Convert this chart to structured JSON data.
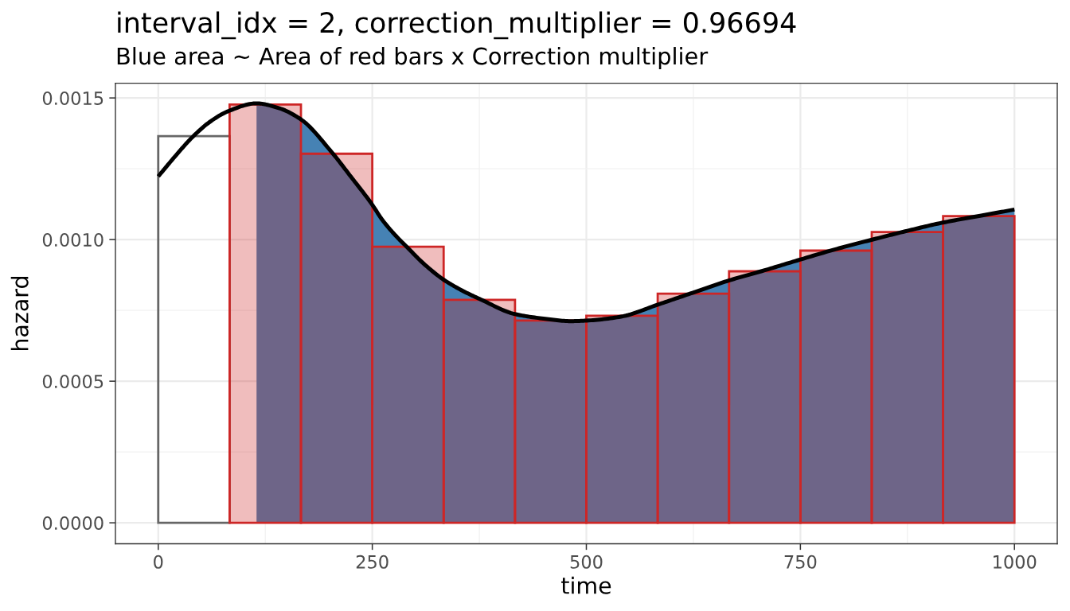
{
  "chart_data": {
    "type": "histogram",
    "title": "interval_idx = 2, correction_multiplier = 0.96694",
    "subtitle": "Blue area ~ Area of red bars x Correction multiplier",
    "xlabel": "time",
    "ylabel": "hazard",
    "series": [
      {
        "bins": [
          0,
          83.33
        ],
        "values": [
          0.001365
        ],
        "color": "#666666"
      },
      {
        "type": "area",
        "x": [
          114.8,
          140,
          166.8,
          203,
          225,
          249.5,
          261.8,
          280.4,
          289.7,
          310,
          333,
          355,
          376.3,
          416.6,
          450,
          481.6,
          500.2,
          540.6,
          585,
          624,
          667,
          707.5,
          749.3,
          790,
          832.9,
          875,
          916.4,
          960,
          1000
        ],
        "values": [
          0.001481,
          0.001465,
          0.001424,
          0.001307,
          0.001222,
          0.001125,
          0.001069,
          0.001004,
          0.000976,
          0.000915,
          0.000859,
          0.00082,
          0.000789,
          0.000737,
          0.000721,
          0.000712,
          0.000714,
          0.000728,
          0.000772,
          0.000812,
          0.000856,
          0.000891,
          0.000929,
          0.000965,
          0.000999,
          0.001031,
          0.00106,
          0.001084,
          0.001106
        ],
        "color": "#4682b4"
      },
      {
        "bins": [
          83.33,
          166.67,
          250,
          333.33,
          416.67,
          500,
          583.33,
          666.67,
          750,
          833.33,
          916.67,
          1000
        ],
        "values": [
          0.001477,
          0.001303,
          0.000975,
          0.000787,
          0.000714,
          0.000731,
          0.000809,
          0.000888,
          0.000961,
          0.001027,
          0.001083
        ],
        "color": "#cd2626"
      },
      {
        "type": "line",
        "x": [
          0,
          20,
          39,
          60,
          82.3,
          114.8,
          140,
          166.8,
          203,
          225,
          249.5,
          261.8,
          280.4,
          289.7,
          310,
          333,
          355,
          376.3,
          416.6,
          450,
          481.6,
          500.2,
          540.6,
          585,
          624,
          667,
          707.5,
          749.3,
          790,
          832.9,
          875,
          916.4,
          960,
          1000
        ],
        "values": [
          0.001223,
          0.001295,
          0.001359,
          0.001415,
          0.001454,
          0.001481,
          0.001465,
          0.001424,
          0.001307,
          0.001222,
          0.001125,
          0.001069,
          0.001004,
          0.000976,
          0.000915,
          0.000859,
          0.00082,
          0.000789,
          0.000737,
          0.000721,
          0.000712,
          0.000714,
          0.000728,
          0.000772,
          0.000812,
          0.000856,
          0.000891,
          0.000929,
          0.000965,
          0.000999,
          0.001031,
          0.00106,
          0.001084,
          0.001106
        ],
        "color": "#000000"
      }
    ],
    "xlim": [
      -50,
      1050
    ],
    "xticks": [
      0,
      {
        "value": 125,
        "label": null
      },
      250,
      {
        "value": 375,
        "label": null
      },
      500,
      {
        "value": 625,
        "label": null
      },
      750,
      {
        "value": 875,
        "label": null
      },
      1000
    ],
    "ylim": [
      -7.4e-05,
      0.001552
    ],
    "yticks": [
      {
        "value": 0,
        "label": "0.0000"
      },
      {
        "value": 0.00025,
        "label": null
      },
      {
        "value": 0.0005,
        "label": "0.0005"
      },
      {
        "value": 0.00075,
        "label": null
      },
      {
        "value": 0.001,
        "label": "0.0010"
      },
      {
        "value": 0.00125,
        "label": null
      },
      {
        "value": 0.0015,
        "label": "0.0015"
      }
    ],
    "grid": true
  }
}
